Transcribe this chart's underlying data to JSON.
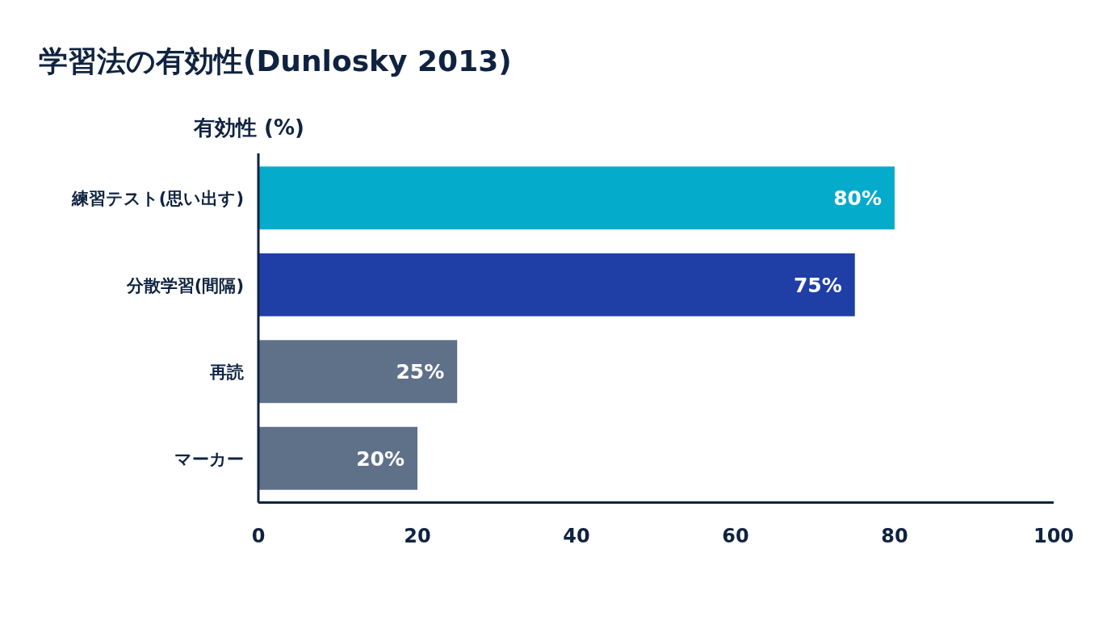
{
  "chart_data": {
    "type": "bar",
    "orientation": "horizontal",
    "title": "学習法の有効性(Dunlosky 2013)",
    "xlabel": "有効性 (%)",
    "categories": [
      "練習テスト(思い出す)",
      "分散学習(間隔)",
      "再読",
      "マーカー"
    ],
    "values": [
      80,
      75,
      25,
      20
    ],
    "value_labels": [
      "80%",
      "75%",
      "25%",
      "20%"
    ],
    "colors": [
      "#04abcb",
      "#1f3fa6",
      "#5f7089",
      "#5f7089"
    ],
    "xlim": [
      0,
      100
    ],
    "xticks": [
      0,
      20,
      40,
      60,
      80,
      100
    ]
  }
}
